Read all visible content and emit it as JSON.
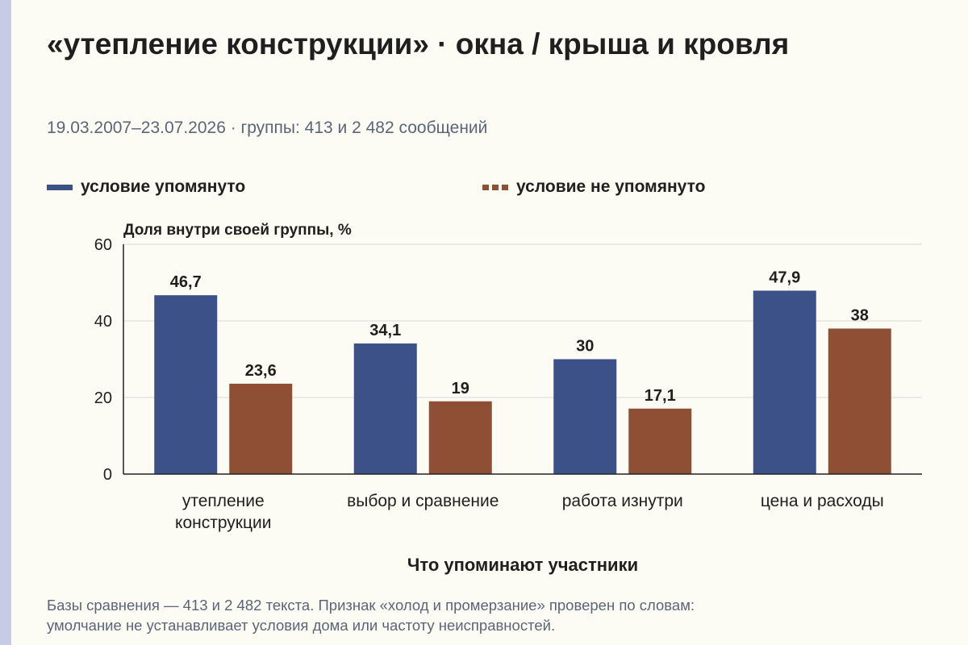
{
  "title": "«утепление конструкции» · окна / крыша и кровля",
  "subtitle": "19.03.2007–23.07.2026 · группы: 413 и 2 482 сообщений",
  "footnote_line1": "Базы сравнения — 413 и 2 482 текста. Признак «холод и промерзание» проверен по словам:",
  "footnote_line2": "умолчание не устанавливает условия дома или частоту неисправностей.",
  "colors": {
    "series_mentioned": "#3d5189",
    "series_not_mentioned": "#8e4f35",
    "grid": "#d9d9d4",
    "axis": "#222222",
    "accent_bar": "#c6cbe6"
  },
  "chart_data": {
    "type": "bar",
    "ylabel": "Доля внутри своей группы, %",
    "xlabel": "Что упоминают участники",
    "ylim": [
      0,
      60
    ],
    "yticks": [
      0,
      20,
      40,
      60
    ],
    "grid": true,
    "legend_position": "top",
    "categories": [
      [
        "утепление",
        "конструкции"
      ],
      [
        "выбор и сравнение"
      ],
      [
        "работа изнутри"
      ],
      [
        "цена и расходы"
      ]
    ],
    "series": [
      {
        "name": "условие упомянуто",
        "values": [
          46.7,
          34.1,
          30,
          47.9
        ],
        "labels": [
          "46,7",
          "34,1",
          "30",
          "47,9"
        ]
      },
      {
        "name": "условие не упомянуто",
        "values": [
          23.6,
          19,
          17.1,
          38
        ],
        "labels": [
          "23,6",
          "19",
          "17,1",
          "38"
        ]
      }
    ]
  }
}
